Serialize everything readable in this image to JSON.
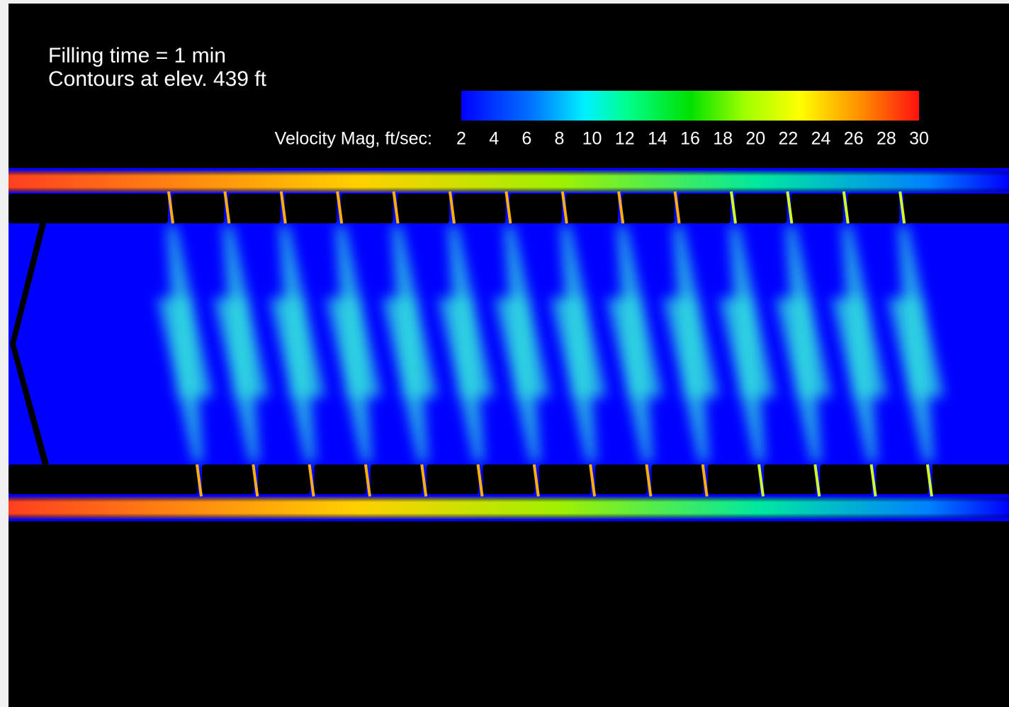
{
  "header": {
    "lines": [
      "Filling time = 1 min",
      "Contours at elev. 439 ft"
    ]
  },
  "colorbar": {
    "label": "Velocity Mag, ft/sec:",
    "range": [
      2,
      30
    ],
    "ticks": [
      2,
      4,
      6,
      8,
      10,
      12,
      14,
      16,
      18,
      20,
      22,
      24,
      26,
      28,
      30
    ]
  }
}
